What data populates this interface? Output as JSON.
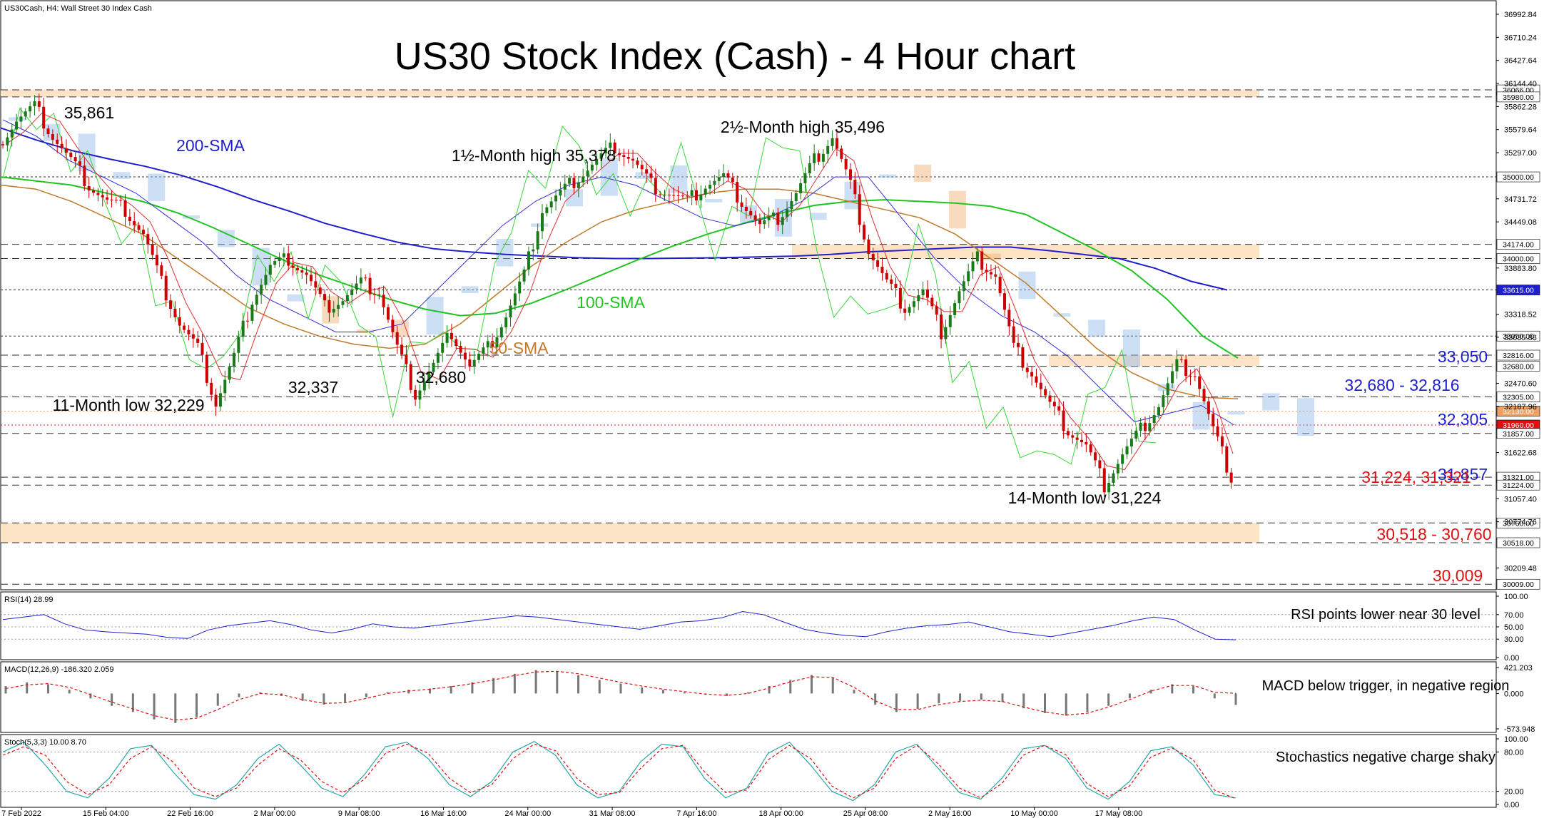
{
  "header": {
    "symbol_label": "US30Cash, H4:  Wall Street 30 Index Cash",
    "title": "US30 Stock Index (Cash) - 4 Hour chart"
  },
  "colors": {
    "price_up": "#1a7a1a",
    "price_down": "#cc0000",
    "sma200": "#1f1fcc",
    "sma100": "#22c322",
    "sma50": "#c07a2a",
    "tenkan": "#e03030",
    "kijun": "#2f2fd8",
    "chikou": "#3ad63a",
    "cloud": "#8fb8e8",
    "cloud_bear": "#f0b070",
    "zone": "#fde3c6",
    "label_blue": "#1f1fcc",
    "label_red": "#e01010"
  },
  "chart_data": [
    {
      "type": "line",
      "name": "price",
      "ylim": [
        29950,
        37150
      ],
      "x_tick_labels": [
        "7 Feb 2022",
        "15 Feb 04:00",
        "22 Feb 16:00",
        "2 Mar 00:00",
        "9 Mar 08:00",
        "16 Mar 16:00",
        "24 Mar 00:00",
        "31 Mar 08:00",
        "7 Apr 16:00",
        "18 Apr 00:00",
        "25 Apr 08:00",
        "2 May 16:00",
        "10 May 00:00",
        "17 May 08:00"
      ],
      "y_tick_labels": [
        "36992.84",
        "36710.24",
        "36427.64",
        "36144.40",
        "35862.28",
        "35579.64",
        "35297.00",
        "34731.72",
        "34449.08",
        "33883.80",
        "33318.52",
        "33035.88",
        "32470.60",
        "32187.96",
        "31622.68",
        "31057.40",
        "30774.76",
        "30209.48"
      ],
      "price_close": [
        35400,
        35700,
        35861,
        35500,
        35200,
        34900,
        34700,
        34600,
        34300,
        33700,
        33200,
        32900,
        32229,
        32800,
        33500,
        33900,
        34000,
        33800,
        33400,
        33500,
        33700,
        33600,
        32900,
        32337,
        32700,
        33100,
        32680,
        32900,
        33300,
        33800,
        34600,
        34800,
        35000,
        35200,
        35378,
        35200,
        34900,
        34800,
        34700,
        34900,
        35000,
        34700,
        34400,
        34500,
        34800,
        35200,
        35496,
        34900,
        34100,
        33700,
        33400,
        33600,
        33100,
        33600,
        34000,
        33800,
        32900,
        32600,
        32200,
        31900,
        31700,
        31224,
        31600,
        31900,
        32200,
        32700,
        32600,
        31900,
        31321
      ],
      "sma200": [
        35600,
        35450,
        35320,
        35220,
        35130,
        35020,
        34880,
        34720,
        34580,
        34430,
        34310,
        34200,
        34120,
        34080,
        34050,
        34030,
        34010,
        34000,
        34000,
        34005,
        34010,
        34020,
        34030,
        34050,
        34080,
        34100,
        34120,
        34140,
        34140,
        34100,
        34050,
        34000,
        33880,
        33720,
        33615
      ],
      "sma100": [
        35000,
        34950,
        34900,
        34800,
        34700,
        34560,
        34380,
        34180,
        33980,
        33800,
        33650,
        33500,
        33380,
        33300,
        33330,
        33450,
        33620,
        33800,
        33980,
        34150,
        34300,
        34430,
        34550,
        34650,
        34700,
        34720,
        34700,
        34680,
        34640,
        34540,
        34320,
        34100,
        33850,
        33500,
        33050,
        32780
      ],
      "sma50": [
        34900,
        34850,
        34700,
        34500,
        34300,
        34000,
        33700,
        33400,
        33200,
        33050,
        32950,
        32900,
        32950,
        33200,
        33550,
        33900,
        34200,
        34450,
        34600,
        34700,
        34800,
        34850,
        34850,
        34800,
        34700,
        34600,
        34500,
        34300,
        34000,
        33700,
        33300,
        32900,
        32600,
        32400,
        32300,
        32280
      ],
      "kijun": [
        35700,
        35500,
        35200,
        35000,
        34800,
        34500,
        34200,
        33800,
        33500,
        33300,
        33100,
        33100,
        33200,
        33600,
        34000,
        34400,
        34700,
        34900,
        35000,
        34900,
        34700,
        34500,
        34400,
        34500,
        34700,
        35000,
        35000,
        34500,
        34000,
        33600,
        33300,
        33100,
        32800,
        32400,
        32000,
        32100,
        32200,
        31960
      ],
      "annotations": [
        "35,861",
        "200-SMA",
        "1½-Month high 35,378",
        "2½-Month high 35,496",
        "100-SMA",
        "50-SMA",
        "32,337",
        "32,680",
        "11-Month low 32,229",
        "33,050",
        "32,680 - 32,816",
        "32,305",
        "31,857",
        "31,224, 31,321",
        "14-Month low 31,224",
        "30,518 - 30,760",
        "30,009"
      ],
      "horizontal_levels": [
        36066,
        35980,
        35000,
        34174,
        34000,
        33615,
        33050,
        32816,
        32680,
        32305,
        32130,
        31960,
        31857,
        31321,
        31224,
        30760,
        30518,
        30009
      ],
      "level_tags": [
        "36066.00",
        "35980.00",
        "35000.00",
        "34174.00",
        "34000.00",
        "33615.00",
        "33050.00",
        "32816.00",
        "32680.00",
        "32305.00",
        "32130.00",
        "31960.00",
        "31857.00",
        "31321.00",
        "31224.00",
        "30760.00",
        "30518.00",
        "30009.00"
      ],
      "zones": [
        [
          35980,
          36066
        ],
        [
          34000,
          34174
        ],
        [
          32680,
          32816
        ],
        [
          30518,
          30760
        ]
      ]
    },
    {
      "type": "line",
      "name": "RSI(14)",
      "header": "RSI(14) 28.99",
      "ylim": [
        0,
        100
      ],
      "y_tick_labels": [
        "100.00",
        "70.00",
        "50.00",
        "30.00",
        "0.00"
      ],
      "values": [
        62,
        66,
        70,
        55,
        45,
        42,
        40,
        38,
        33,
        31,
        45,
        52,
        56,
        60,
        54,
        45,
        40,
        46,
        55,
        50,
        48,
        52,
        56,
        60,
        64,
        68,
        66,
        62,
        58,
        54,
        50,
        46,
        52,
        58,
        60,
        65,
        75,
        70,
        58,
        46,
        40,
        36,
        34,
        42,
        48,
        52,
        54,
        58,
        50,
        42,
        38,
        34,
        40,
        46,
        52,
        60,
        66,
        62,
        45,
        30,
        29
      ],
      "note": "RSI points lower near 30 level"
    },
    {
      "type": "bar",
      "name": "MACD(12,26,9)",
      "header": "MACD(12,26,9) -186.320 2.059",
      "ylim": [
        -573.948,
        421.203
      ],
      "y_tick_labels": [
        "421.203",
        "0.000",
        "-573.948"
      ],
      "values": [
        120,
        180,
        150,
        60,
        -80,
        -200,
        -300,
        -420,
        -480,
        -380,
        -200,
        -60,
        20,
        -40,
        -120,
        -180,
        -140,
        -60,
        20,
        60,
        80,
        120,
        180,
        250,
        320,
        380,
        360,
        300,
        220,
        160,
        100,
        60,
        20,
        -20,
        -40,
        20,
        120,
        220,
        300,
        250,
        60,
        -180,
        -300,
        -250,
        -160,
        -120,
        -100,
        -140,
        -240,
        -320,
        -360,
        -300,
        -200,
        -80,
        60,
        150,
        120,
        -80,
        -186
      ],
      "signal": [
        80,
        140,
        160,
        100,
        -20,
        -140,
        -250,
        -360,
        -430,
        -400,
        -260,
        -100,
        0,
        -20,
        -100,
        -160,
        -150,
        -80,
        0,
        40,
        70,
        110,
        160,
        220,
        290,
        350,
        360,
        320,
        250,
        180,
        120,
        70,
        30,
        -10,
        -30,
        0,
        90,
        190,
        270,
        260,
        100,
        -120,
        -260,
        -260,
        -180,
        -130,
        -110,
        -130,
        -220,
        -300,
        -350,
        -320,
        -220,
        -100,
        40,
        130,
        130,
        20,
        2
      ],
      "note": "MACD below trigger, in negative region"
    },
    {
      "type": "line",
      "name": "Stoch(5,3,3)",
      "header": "Stoch(5,3,3) 10.00 8.70",
      "ylim": [
        0,
        100
      ],
      "y_tick_labels": [
        "100.00",
        "80.00",
        "20.00",
        "0.00"
      ],
      "k": [
        80,
        95,
        60,
        20,
        10,
        40,
        85,
        90,
        50,
        15,
        8,
        30,
        70,
        92,
        60,
        25,
        12,
        45,
        88,
        95,
        70,
        30,
        12,
        35,
        80,
        96,
        75,
        30,
        10,
        20,
        65,
        92,
        88,
        40,
        10,
        25,
        78,
        95,
        60,
        20,
        6,
        30,
        80,
        92,
        55,
        18,
        8,
        40,
        85,
        90,
        70,
        25,
        8,
        35,
        82,
        88,
        60,
        15,
        10
      ],
      "d": [
        75,
        88,
        75,
        35,
        15,
        30,
        70,
        88,
        65,
        25,
        12,
        25,
        60,
        85,
        68,
        35,
        18,
        38,
        78,
        92,
        78,
        40,
        18,
        30,
        70,
        92,
        82,
        40,
        15,
        18,
        55,
        85,
        90,
        50,
        18,
        22,
        68,
        90,
        70,
        28,
        10,
        25,
        70,
        90,
        62,
        25,
        10,
        32,
        75,
        90,
        76,
        32,
        12,
        28,
        72,
        86,
        68,
        22,
        8.7
      ],
      "note": "Stochastics negative charge shaky"
    }
  ]
}
